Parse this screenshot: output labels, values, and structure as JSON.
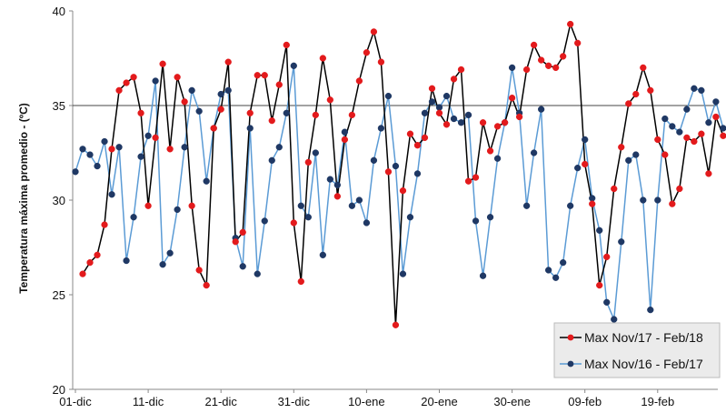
{
  "chart_data": {
    "type": "line",
    "ylabel": "Temperatura máxima promedio - (ºC)",
    "ylim": [
      20,
      40
    ],
    "yticks": [
      "20",
      "25",
      "30",
      "35",
      "40"
    ],
    "xticks": [
      "01-dic",
      "11-dic",
      "21-dic",
      "31-dic",
      "10-ene",
      "20-ene",
      "30-ene",
      "09-feb",
      "19-feb"
    ],
    "reference_line": 35,
    "legend_position": "bottom-right",
    "grid": false,
    "series": [
      {
        "name": "Max Nov/17 - Feb/18",
        "color": "#e31a1c",
        "line_color": "#000000",
        "values": [
          null,
          26.1,
          26.7,
          27.1,
          28.7,
          32.7,
          35.8,
          36.2,
          36.5,
          34.6,
          29.7,
          33.3,
          37.2,
          32.7,
          36.5,
          35.2,
          29.7,
          26.3,
          25.5,
          33.8,
          34.8,
          37.3,
          27.8,
          28.3,
          34.6,
          36.6,
          36.6,
          34.2,
          36.1,
          38.2,
          28.8,
          25.7,
          32.0,
          34.5,
          37.5,
          35.3,
          30.2,
          33.2,
          34.5,
          36.3,
          37.8,
          38.9,
          37.3,
          31.5,
          23.4,
          30.5,
          33.5,
          32.9,
          33.3,
          35.9,
          34.6,
          34.0,
          36.4,
          36.9,
          31.0,
          31.2,
          34.1,
          32.6,
          33.9,
          34.1,
          35.4,
          34.4,
          36.9,
          38.2,
          37.4,
          37.1,
          37.0,
          37.6,
          39.3,
          38.3,
          31.9,
          29.8,
          25.5,
          27.0,
          30.6,
          32.8,
          35.1,
          35.6,
          37.0,
          35.8,
          33.2,
          32.4,
          29.8,
          30.6,
          33.3,
          33.1,
          33.5,
          31.4,
          34.4,
          33.4
        ]
      },
      {
        "name": "Max Nov/16 - Feb/17",
        "color": "#1f3864",
        "line_color": "#5b9bd5",
        "values": [
          31.5,
          32.7,
          32.4,
          31.8,
          33.1,
          30.3,
          32.8,
          26.8,
          29.1,
          32.3,
          33.4,
          36.3,
          26.6,
          27.2,
          29.5,
          32.8,
          35.8,
          34.7,
          31.0,
          33.8,
          35.6,
          35.8,
          28.0,
          26.5,
          33.8,
          26.1,
          28.9,
          32.1,
          32.8,
          34.6,
          37.1,
          29.7,
          29.1,
          32.5,
          27.1,
          31.1,
          30.8,
          33.6,
          29.7,
          30.0,
          28.8,
          32.1,
          33.8,
          35.5,
          31.8,
          26.1,
          29.1,
          31.4,
          34.6,
          35.2,
          34.9,
          35.5,
          34.3,
          34.1,
          34.5,
          28.9,
          26.0,
          29.1,
          32.2,
          34.1,
          37.0,
          34.6,
          29.7,
          32.5,
          34.8,
          26.3,
          25.9,
          26.7,
          29.7,
          31.7,
          33.2,
          30.1,
          28.4,
          24.6,
          23.7,
          27.8,
          32.1,
          32.4,
          30.0,
          24.2,
          30.0,
          34.3,
          33.9,
          33.6,
          34.8,
          35.9,
          35.8,
          34.1,
          35.2,
          33.8
        ]
      }
    ]
  }
}
